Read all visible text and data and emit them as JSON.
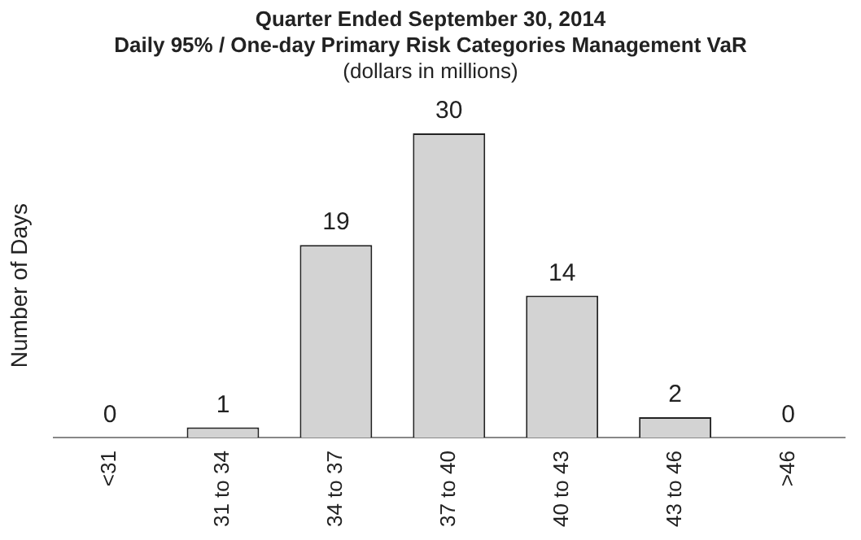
{
  "chart_data": {
    "type": "bar",
    "title": "Quarter Ended September 30, 2014",
    "subtitle": "Daily 95% / One-day Primary Risk Categories Management VaR",
    "annotations": [
      "(dollars in millions)"
    ],
    "ylabel": "Number of Days",
    "categories": [
      "<31",
      "31 to 34",
      "34 to 37",
      "37 to 40",
      "40 to 43",
      "43 to 46",
      ">46"
    ],
    "values": [
      0,
      1,
      19,
      30,
      14,
      2,
      0
    ],
    "color": "#d3d3d3",
    "data_labels": true,
    "grid": false,
    "legend": false
  }
}
